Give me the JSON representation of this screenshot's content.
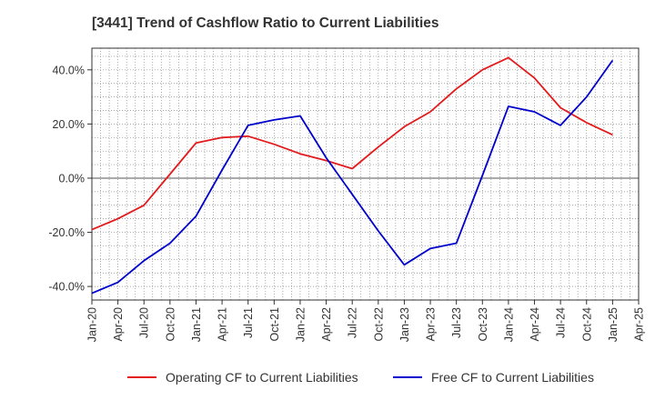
{
  "chart_data": {
    "type": "line",
    "title": "[3441]  Trend of Cashflow Ratio to Current Liabilities",
    "x": [
      "Jan-20",
      "Apr-20",
      "Jul-20",
      "Oct-20",
      "Jan-21",
      "Apr-21",
      "Jul-21",
      "Oct-21",
      "Jan-22",
      "Apr-22",
      "Jul-22",
      "Oct-22",
      "Jan-23",
      "Apr-23",
      "Jul-23",
      "Oct-23",
      "Jan-24",
      "Apr-24",
      "Jul-24",
      "Oct-24",
      "Jan-25"
    ],
    "x_ticks": [
      "Jan-20",
      "Apr-20",
      "Jul-20",
      "Oct-20",
      "Jan-21",
      "Apr-21",
      "Jul-21",
      "Oct-21",
      "Jan-22",
      "Apr-22",
      "Jul-22",
      "Oct-22",
      "Jan-23",
      "Apr-23",
      "Jul-23",
      "Oct-23",
      "Jan-24",
      "Apr-24",
      "Jul-24",
      "Oct-24",
      "Jan-25",
      "Apr-25"
    ],
    "series": [
      {
        "name": "Operating CF to Current Liabilities",
        "color": "#e31a1c",
        "values": [
          -19.0,
          -15.0,
          -10.0,
          1.5,
          13.0,
          15.0,
          15.5,
          12.5,
          9.0,
          6.5,
          3.5,
          11.5,
          19.0,
          24.5,
          33.0,
          40.0,
          44.5,
          37.0,
          26.0,
          20.5,
          16.0
        ]
      },
      {
        "name": "Free CF to Current Liabilities",
        "color": "#0000cc",
        "values": [
          -42.5,
          -38.5,
          -30.5,
          -24.0,
          -14.0,
          3.0,
          19.5,
          21.5,
          23.0,
          7.5,
          -6.0,
          -19.5,
          -32.0,
          -26.0,
          -24.0,
          1.0,
          26.5,
          24.5,
          19.5,
          30.0,
          43.5
        ]
      }
    ],
    "y_ticks": [
      -40,
      -20,
      0,
      20,
      40
    ],
    "y_tick_labels": [
      "-40.0%",
      "-20.0%",
      "0.0%",
      "20.0%",
      "40.0%"
    ],
    "ylim": [
      -45,
      48
    ],
    "grid": true,
    "legend_position": "bottom"
  }
}
